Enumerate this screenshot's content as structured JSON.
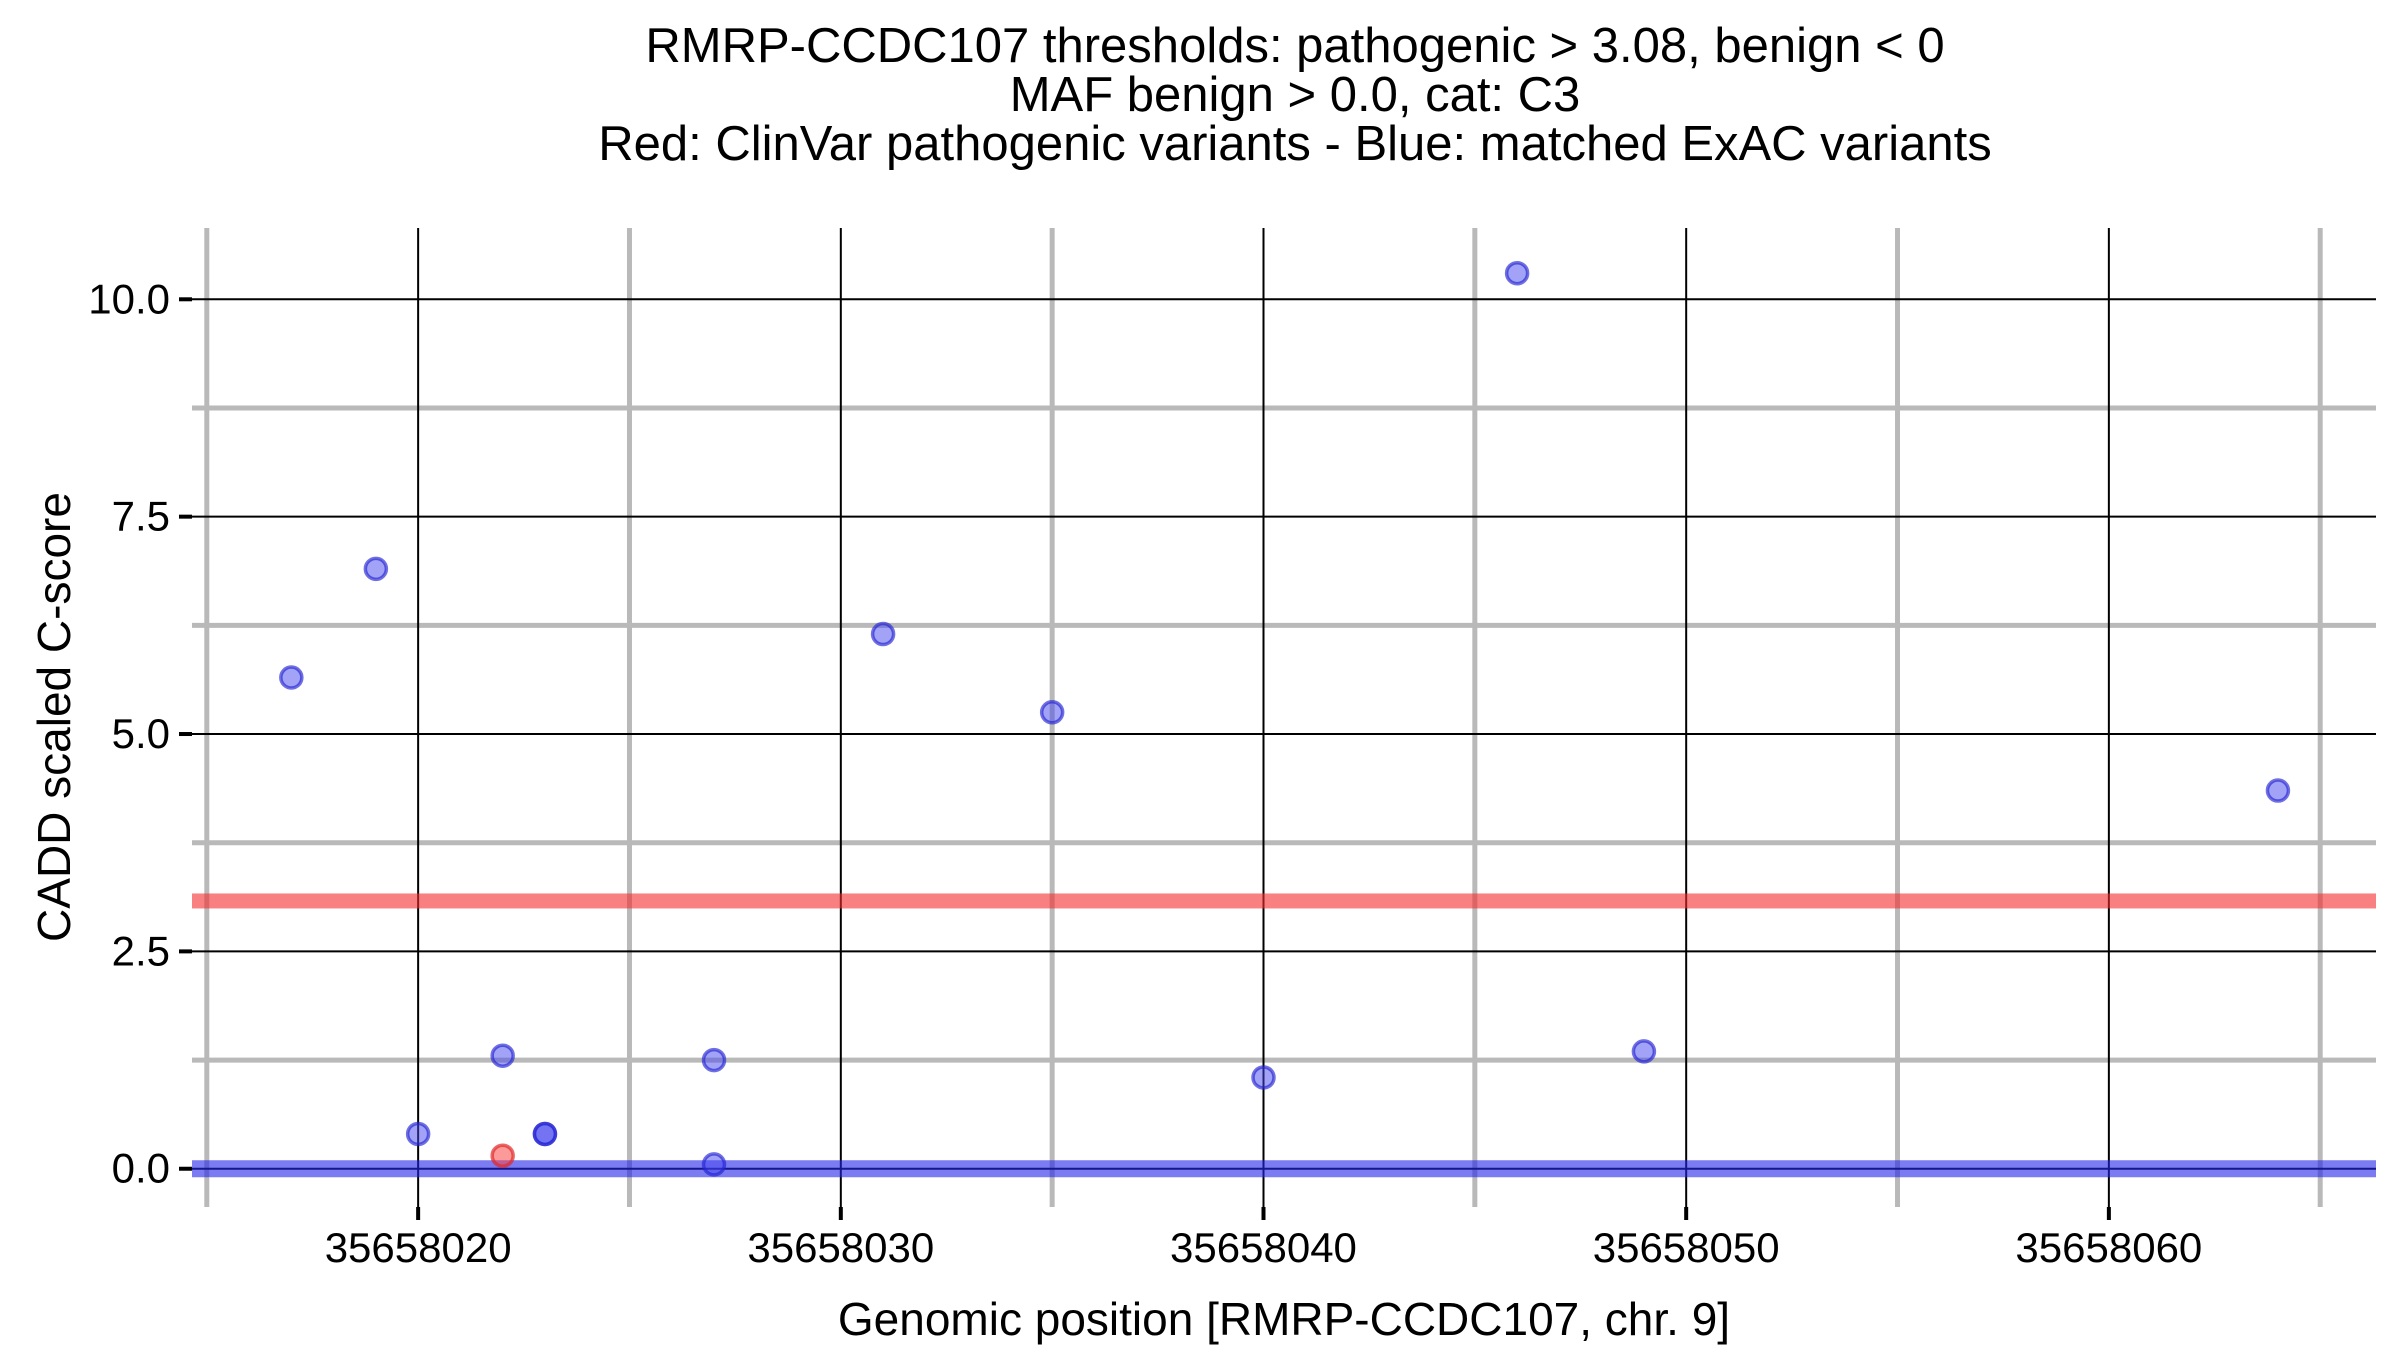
{
  "title": {
    "line1": "RMRP-CCDC107 thresholds: pathogenic > 3.08, benign < 0",
    "line2": "MAF benign > 0.0, cat: C3",
    "line3": "Red: ClinVar pathogenic variants - Blue: matched ExAC variants"
  },
  "chart_data": {
    "type": "scatter",
    "title": "RMRP-CCDC107 thresholds: pathogenic > 3.08, benign < 0 | MAF benign > 0.0, cat: C3 | Red: ClinVar pathogenic variants - Blue: matched ExAC variants",
    "xlabel": "Genomic position [RMRP-CCDC107, chr. 9]",
    "ylabel": "CADD scaled C-score",
    "xlim": [
      35658014.65,
      35658066.32
    ],
    "ylim": [
      -0.44,
      10.82
    ],
    "grid": "on",
    "legend_position": "none",
    "x_major_ticks": [
      35658020,
      35658030,
      35658040,
      35658050,
      35658060
    ],
    "x_major_tick_labels": [
      "35658020",
      "35658030",
      "35658040",
      "35658050",
      "35658060"
    ],
    "x_minor_ticks": [
      35658015,
      35658025,
      35658035,
      35658045,
      35658055,
      35658065
    ],
    "y_major_ticks": [
      0,
      2.5,
      5,
      7.5,
      10
    ],
    "y_major_tick_labels": [
      "0.0",
      "2.5",
      "5.0",
      "7.5",
      "10.0"
    ],
    "y_minor_ticks": [
      1.25,
      3.75,
      6.25,
      8.75
    ],
    "thresholds": {
      "pathogenic_value": 3.08,
      "pathogenic_color": "#f87f7f",
      "benign_value": 0.0,
      "benign_color": "#7b7bf2"
    },
    "series": [
      {
        "name": "matched ExAC variants",
        "color_fill": "rgba(70,70,240,0.5)",
        "color_stroke": "rgba(35,35,210,0.65)",
        "points": [
          {
            "x": 35658017,
            "y": 5.65
          },
          {
            "x": 35658019,
            "y": 6.9
          },
          {
            "x": 35658020,
            "y": 0.4
          },
          {
            "x": 35658022,
            "y": 1.3
          },
          {
            "x": 35658023,
            "y": 0.4
          },
          {
            "x": 35658023,
            "y": 0.4
          },
          {
            "x": 35658027,
            "y": 1.25
          },
          {
            "x": 35658027,
            "y": 0.05
          },
          {
            "x": 35658031,
            "y": 6.15
          },
          {
            "x": 35658035,
            "y": 5.25
          },
          {
            "x": 35658040,
            "y": 1.05
          },
          {
            "x": 35658046,
            "y": 10.3
          },
          {
            "x": 35658049,
            "y": 1.35
          },
          {
            "x": 35658064,
            "y": 4.35
          }
        ]
      },
      {
        "name": "ClinVar pathogenic variants",
        "color_fill": "rgba(250,70,70,0.55)",
        "color_stroke": "rgba(225,40,40,0.7)",
        "points": [
          {
            "x": 35658022,
            "y": 0.15
          }
        ]
      }
    ]
  },
  "colors": {
    "major_grid": "#000000",
    "minor_grid": "#b9b9b9",
    "tick": "#000000",
    "background": "#ffffff"
  }
}
